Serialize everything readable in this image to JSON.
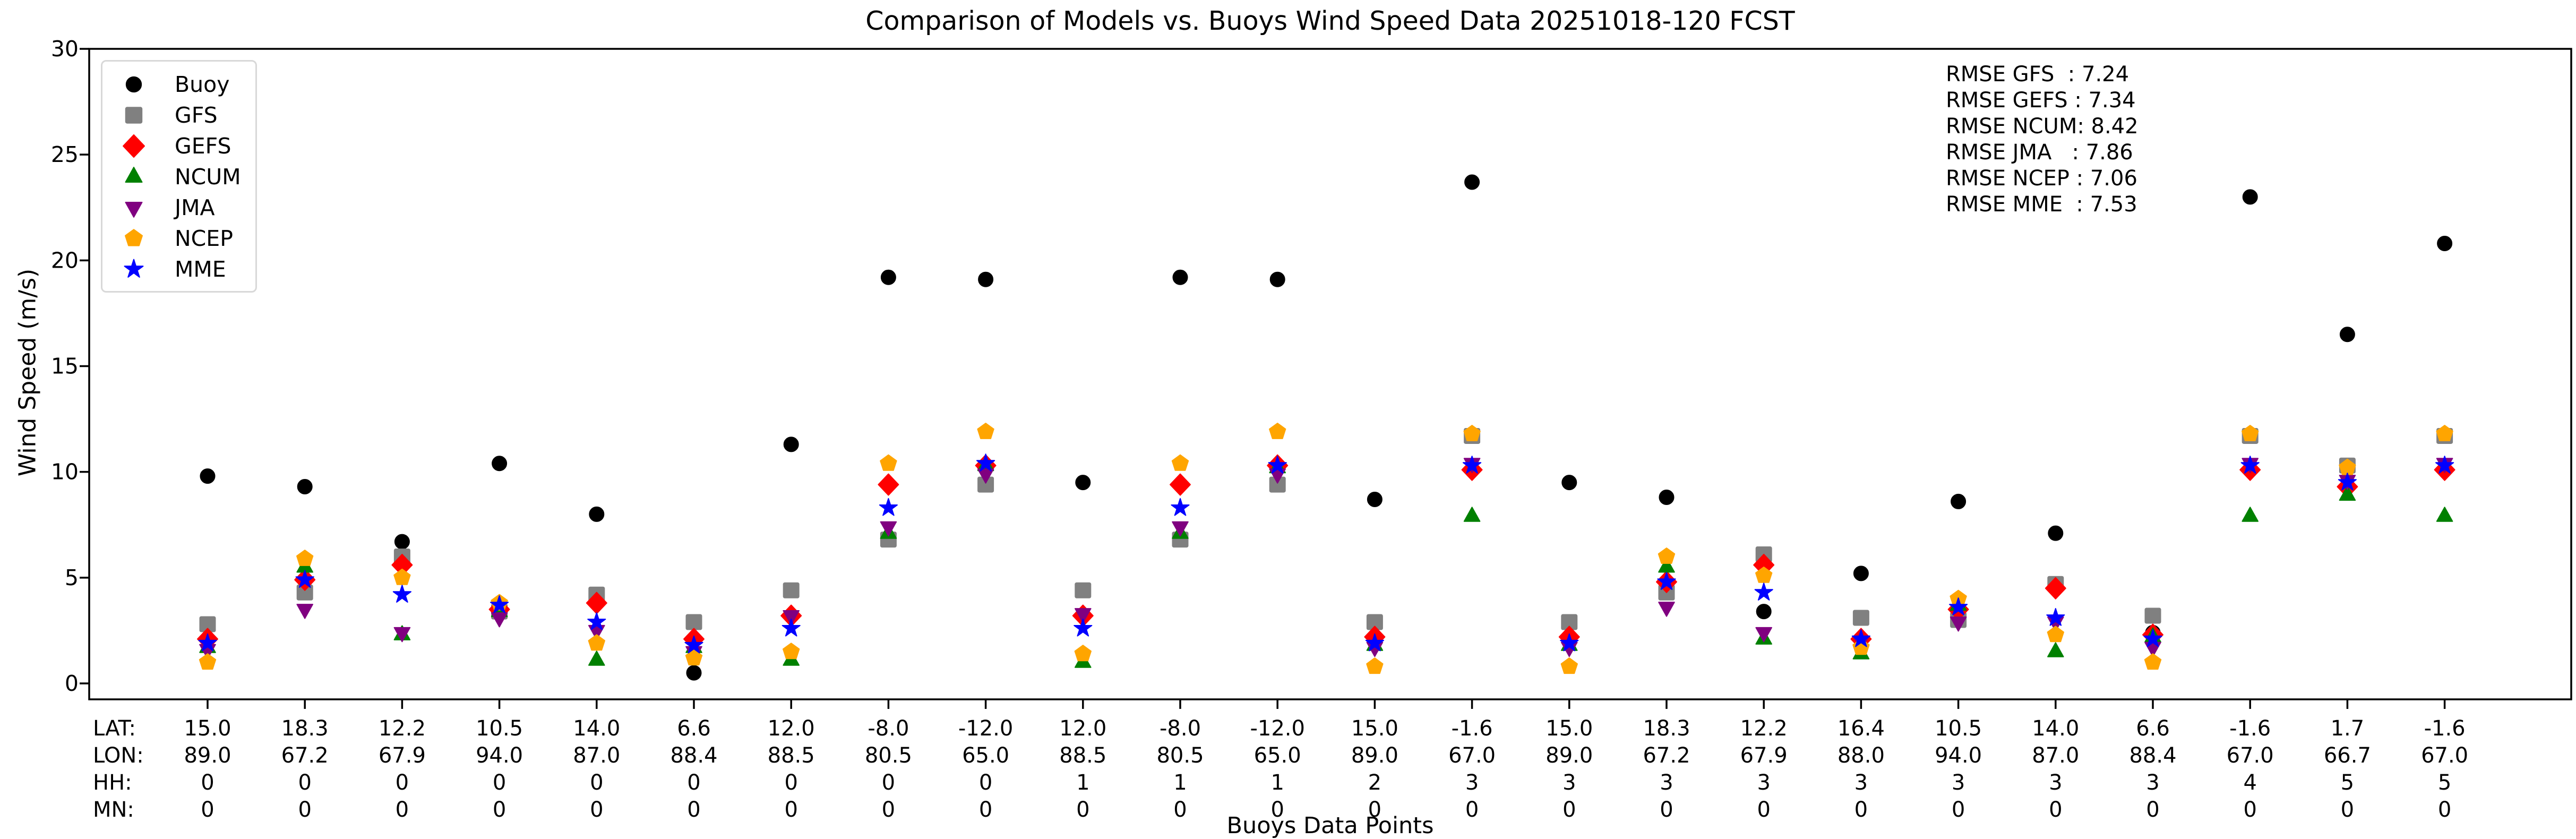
{
  "figure": {
    "title": "Comparison of Models vs. Buoys Wind Speed Data 20251018-120 FCST",
    "xlabel": "Buoys Data Points",
    "ylabel": "Wind Speed (m/s)"
  },
  "rmse_box": {
    "lines": [
      "RMSE GFS  : 7.24",
      "RMSE GEFS : 7.34",
      "RMSE NCUM: 8.42",
      "RMSE JMA   : 7.86",
      "RMSE NCEP : 7.06",
      "RMSE MME  : 7.53"
    ]
  },
  "legend": {
    "items": [
      {
        "label": "Buoy",
        "marker": "circle",
        "color": "#000000"
      },
      {
        "label": "GFS",
        "marker": "square",
        "color": "#808080"
      },
      {
        "label": "GEFS",
        "marker": "diamond",
        "color": "#ff0000"
      },
      {
        "label": "NCUM",
        "marker": "triangle-up",
        "color": "#008000"
      },
      {
        "label": "JMA",
        "marker": "triangle-down",
        "color": "#800080"
      },
      {
        "label": "NCEP",
        "marker": "pentagon",
        "color": "#ffa500"
      },
      {
        "label": "MME",
        "marker": "star",
        "color": "#0000ff"
      }
    ]
  },
  "chart_data": {
    "type": "scatter",
    "title": "Comparison of Models vs. Buoys Wind Speed Data 20251018-120 FCST",
    "xlabel": "Buoys Data Points",
    "ylabel": "Wind Speed (m/s)",
    "ylim": [
      0,
      30
    ],
    "grid": false,
    "legend_position": "upper-left",
    "ytick_labels": [
      "0",
      "5",
      "10",
      "15",
      "20",
      "25",
      "30"
    ],
    "yticks": [
      0,
      5,
      10,
      15,
      20,
      25,
      30
    ],
    "x_row_headers": [
      "LAT:",
      "LON:",
      "HH:",
      "MN:"
    ],
    "points": [
      {
        "lat": "15.0",
        "lon": "89.0",
        "hh": "0",
        "mn": "0"
      },
      {
        "lat": "18.3",
        "lon": "67.2",
        "hh": "0",
        "mn": "0"
      },
      {
        "lat": "12.2",
        "lon": "67.9",
        "hh": "0",
        "mn": "0"
      },
      {
        "lat": "10.5",
        "lon": "94.0",
        "hh": "0",
        "mn": "0"
      },
      {
        "lat": "14.0",
        "lon": "87.0",
        "hh": "0",
        "mn": "0"
      },
      {
        "lat": "6.6",
        "lon": "88.4",
        "hh": "0",
        "mn": "0"
      },
      {
        "lat": "12.0",
        "lon": "88.5",
        "hh": "0",
        "mn": "0"
      },
      {
        "lat": "-8.0",
        "lon": "80.5",
        "hh": "0",
        "mn": "0"
      },
      {
        "lat": "-12.0",
        "lon": "65.0",
        "hh": "0",
        "mn": "0"
      },
      {
        "lat": "12.0",
        "lon": "88.5",
        "hh": "1",
        "mn": "0"
      },
      {
        "lat": "-8.0",
        "lon": "80.5",
        "hh": "1",
        "mn": "0"
      },
      {
        "lat": "-12.0",
        "lon": "65.0",
        "hh": "1",
        "mn": "0"
      },
      {
        "lat": "15.0",
        "lon": "89.0",
        "hh": "2",
        "mn": "0"
      },
      {
        "lat": "-1.6",
        "lon": "67.0",
        "hh": "3",
        "mn": "0"
      },
      {
        "lat": "15.0",
        "lon": "89.0",
        "hh": "3",
        "mn": "0"
      },
      {
        "lat": "18.3",
        "lon": "67.2",
        "hh": "3",
        "mn": "0"
      },
      {
        "lat": "12.2",
        "lon": "67.9",
        "hh": "3",
        "mn": "0"
      },
      {
        "lat": "16.4",
        "lon": "88.0",
        "hh": "3",
        "mn": "0"
      },
      {
        "lat": "10.5",
        "lon": "94.0",
        "hh": "3",
        "mn": "0"
      },
      {
        "lat": "14.0",
        "lon": "87.0",
        "hh": "3",
        "mn": "0"
      },
      {
        "lat": "6.6",
        "lon": "88.4",
        "hh": "3",
        "mn": "0"
      },
      {
        "lat": "-1.6",
        "lon": "67.0",
        "hh": "4",
        "mn": "0"
      },
      {
        "lat": "1.7",
        "lon": "66.7",
        "hh": "5",
        "mn": "0"
      },
      {
        "lat": "-1.6",
        "lon": "67.0",
        "hh": "5",
        "mn": "0"
      }
    ],
    "series": [
      {
        "name": "Buoy",
        "marker": "circle",
        "color": "#000000",
        "values": [
          9.8,
          9.3,
          6.7,
          10.4,
          8.0,
          0.5,
          11.3,
          19.2,
          19.1,
          9.5,
          19.2,
          19.1,
          8.7,
          23.7,
          9.5,
          8.8,
          3.4,
          5.2,
          8.6,
          7.1,
          2.4,
          23.0,
          16.5,
          20.8
        ]
      },
      {
        "name": "GFS",
        "marker": "square",
        "color": "#808080",
        "values": [
          2.8,
          4.3,
          6.0,
          3.4,
          4.2,
          2.9,
          4.4,
          6.8,
          9.4,
          4.4,
          6.8,
          9.4,
          2.9,
          11.7,
          2.9,
          4.3,
          6.1,
          3.1,
          3.0,
          4.7,
          3.2,
          11.7,
          10.3,
          11.7
        ]
      },
      {
        "name": "GEFS",
        "marker": "diamond",
        "color": "#ff0000",
        "values": [
          2.1,
          4.9,
          5.6,
          3.5,
          3.8,
          2.1,
          3.2,
          9.4,
          10.3,
          3.2,
          9.4,
          10.3,
          2.2,
          10.1,
          2.2,
          4.8,
          5.6,
          2.1,
          3.5,
          4.5,
          2.3,
          10.1,
          9.3,
          10.1
        ]
      },
      {
        "name": "NCUM",
        "marker": "triangle-up",
        "color": "#008000",
        "values": [
          1.7,
          5.5,
          2.3,
          3.4,
          1.1,
          1.7,
          1.1,
          7.1,
          10.3,
          1.0,
          7.1,
          10.2,
          1.8,
          7.9,
          1.8,
          5.5,
          2.1,
          1.4,
          3.7,
          1.5,
          2.2,
          7.9,
          8.9,
          7.9
        ]
      },
      {
        "name": "JMA",
        "marker": "triangle-down",
        "color": "#800080",
        "values": [
          1.6,
          3.5,
          2.4,
          3.1,
          2.5,
          1.5,
          3.2,
          7.4,
          9.9,
          3.3,
          7.4,
          9.9,
          1.7,
          10.4,
          1.7,
          3.6,
          2.4,
          2.0,
          2.9,
          2.9,
          1.7,
          10.4,
          9.6,
          10.4
        ]
      },
      {
        "name": "NCEP",
        "marker": "pentagon",
        "color": "#ffa500",
        "values": [
          1.0,
          5.9,
          5.0,
          3.8,
          1.9,
          1.2,
          1.5,
          10.4,
          11.9,
          1.4,
          10.4,
          11.9,
          0.8,
          11.8,
          0.8,
          6.0,
          5.1,
          1.7,
          4.0,
          2.3,
          1.0,
          11.8,
          10.2,
          11.8
        ]
      },
      {
        "name": "MME",
        "marker": "star",
        "color": "#0000ff",
        "values": [
          1.9,
          4.9,
          4.2,
          3.7,
          2.9,
          1.8,
          2.6,
          8.3,
          10.4,
          2.6,
          8.3,
          10.3,
          1.9,
          10.3,
          1.9,
          4.8,
          4.3,
          2.1,
          3.6,
          3.1,
          2.1,
          10.3,
          9.5,
          10.3
        ]
      }
    ],
    "rmse": {
      "GFS": 7.24,
      "GEFS": 7.34,
      "NCUM": 8.42,
      "JMA": 7.86,
      "NCEP": 7.06,
      "MME": 7.53
    }
  }
}
